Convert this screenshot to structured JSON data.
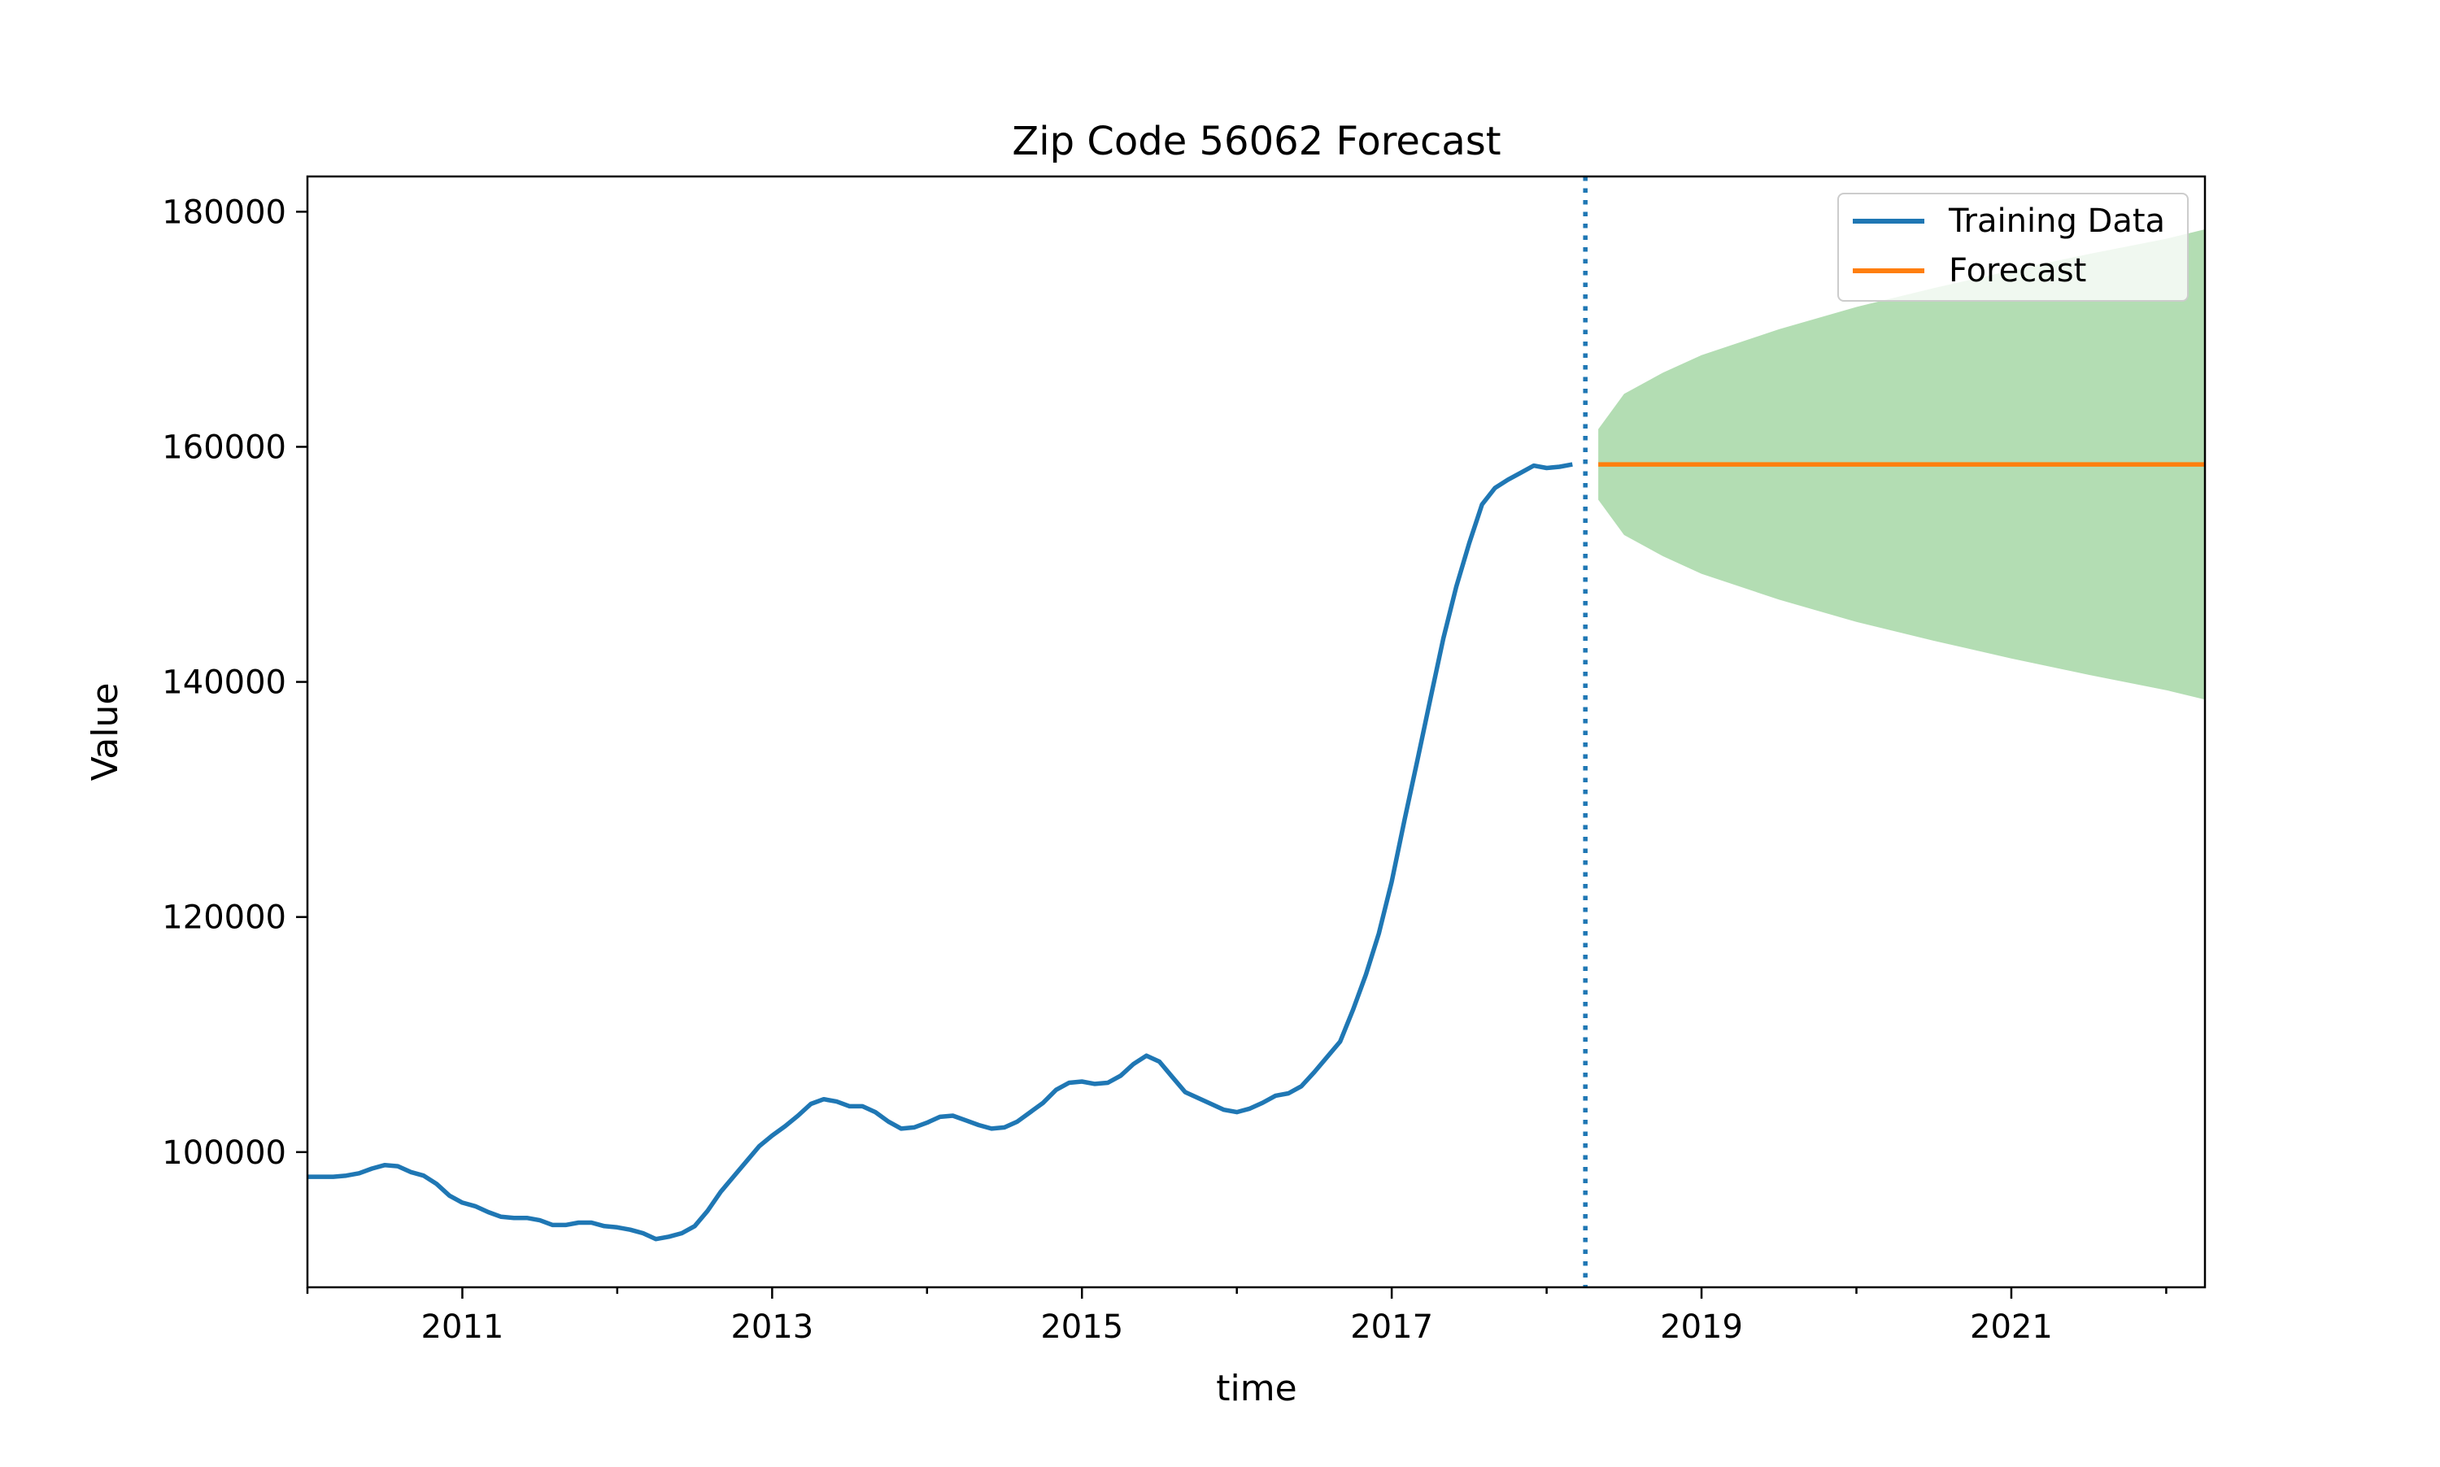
{
  "chart_data": {
    "type": "line",
    "title": "Zip Code 56062 Forecast",
    "xlabel": "time",
    "ylabel": "Value",
    "x_axis_type": "date",
    "xlim": [
      "2010-01",
      "2022-04"
    ],
    "ylim": [
      88500,
      183000
    ],
    "x_ticks": [
      "2011",
      "2013",
      "2015",
      "2017",
      "2019",
      "2021"
    ],
    "y_ticks": [
      100000,
      120000,
      140000,
      160000,
      180000
    ],
    "grid": false,
    "legend_position": "top-right",
    "colors": {
      "training": "#1f77b4",
      "forecast": "#ff7f0e",
      "confidence_band": "#2ca02c",
      "split_line": "#1f77b4"
    },
    "split_date": "2018-04",
    "series": [
      {
        "name": "Training Data",
        "points": [
          [
            "2010-01",
            97900
          ],
          [
            "2010-02",
            97900
          ],
          [
            "2010-03",
            97900
          ],
          [
            "2010-04",
            98000
          ],
          [
            "2010-05",
            98200
          ],
          [
            "2010-06",
            98600
          ],
          [
            "2010-07",
            98900
          ],
          [
            "2010-08",
            98800
          ],
          [
            "2010-09",
            98300
          ],
          [
            "2010-10",
            98000
          ],
          [
            "2010-11",
            97300
          ],
          [
            "2010-12",
            96300
          ],
          [
            "2011-01",
            95700
          ],
          [
            "2011-02",
            95400
          ],
          [
            "2011-03",
            94900
          ],
          [
            "2011-04",
            94500
          ],
          [
            "2011-05",
            94400
          ],
          [
            "2011-06",
            94400
          ],
          [
            "2011-07",
            94200
          ],
          [
            "2011-08",
            93800
          ],
          [
            "2011-09",
            93800
          ],
          [
            "2011-10",
            94000
          ],
          [
            "2011-11",
            94000
          ],
          [
            "2011-12",
            93700
          ],
          [
            "2012-01",
            93600
          ],
          [
            "2012-02",
            93400
          ],
          [
            "2012-03",
            93100
          ],
          [
            "2012-04",
            92600
          ],
          [
            "2012-05",
            92800
          ],
          [
            "2012-06",
            93100
          ],
          [
            "2012-07",
            93700
          ],
          [
            "2012-08",
            95000
          ],
          [
            "2012-09",
            96600
          ],
          [
            "2012-10",
            97900
          ],
          [
            "2012-11",
            99200
          ],
          [
            "2012-12",
            100500
          ],
          [
            "2013-01",
            101400
          ],
          [
            "2013-02",
            102200
          ],
          [
            "2013-03",
            103100
          ],
          [
            "2013-04",
            104100
          ],
          [
            "2013-05",
            104500
          ],
          [
            "2013-06",
            104300
          ],
          [
            "2013-07",
            103900
          ],
          [
            "2013-08",
            103900
          ],
          [
            "2013-09",
            103400
          ],
          [
            "2013-10",
            102600
          ],
          [
            "2013-11",
            102000
          ],
          [
            "2013-12",
            102100
          ],
          [
            "2014-01",
            102500
          ],
          [
            "2014-02",
            103000
          ],
          [
            "2014-03",
            103100
          ],
          [
            "2014-04",
            102700
          ],
          [
            "2014-05",
            102300
          ],
          [
            "2014-06",
            102000
          ],
          [
            "2014-07",
            102100
          ],
          [
            "2014-08",
            102600
          ],
          [
            "2014-09",
            103400
          ],
          [
            "2014-10",
            104200
          ],
          [
            "2014-11",
            105300
          ],
          [
            "2014-12",
            105900
          ],
          [
            "2015-01",
            106000
          ],
          [
            "2015-02",
            105800
          ],
          [
            "2015-03",
            105900
          ],
          [
            "2015-04",
            106500
          ],
          [
            "2015-05",
            107500
          ],
          [
            "2015-06",
            108200
          ],
          [
            "2015-07",
            107700
          ],
          [
            "2015-08",
            106400
          ],
          [
            "2015-09",
            105100
          ],
          [
            "2015-10",
            104600
          ],
          [
            "2015-11",
            104100
          ],
          [
            "2015-12",
            103600
          ],
          [
            "2016-01",
            103400
          ],
          [
            "2016-02",
            103700
          ],
          [
            "2016-03",
            104200
          ],
          [
            "2016-04",
            104800
          ],
          [
            "2016-05",
            105000
          ],
          [
            "2016-06",
            105600
          ],
          [
            "2016-07",
            106800
          ],
          [
            "2016-08",
            108100
          ],
          [
            "2016-09",
            109400
          ],
          [
            "2016-10",
            112100
          ],
          [
            "2016-11",
            115100
          ],
          [
            "2016-12",
            118600
          ],
          [
            "2017-01",
            123000
          ],
          [
            "2017-02",
            128300
          ],
          [
            "2017-03",
            133400
          ],
          [
            "2017-04",
            138600
          ],
          [
            "2017-05",
            143700
          ],
          [
            "2017-06",
            148100
          ],
          [
            "2017-07",
            151800
          ],
          [
            "2017-08",
            155100
          ],
          [
            "2017-09",
            156500
          ],
          [
            "2017-10",
            157200
          ],
          [
            "2017-11",
            157800
          ],
          [
            "2017-12",
            158400
          ],
          [
            "2018-01",
            158200
          ],
          [
            "2018-02",
            158300
          ],
          [
            "2018-03",
            158500
          ]
        ]
      },
      {
        "name": "Forecast",
        "points": [
          [
            "2018-05",
            158500
          ],
          [
            "2022-04",
            158500
          ]
        ]
      }
    ],
    "confidence_band": {
      "x": [
        "2018-05",
        "2018-07",
        "2018-10",
        "2019-01",
        "2019-07",
        "2020-01",
        "2020-07",
        "2021-01",
        "2021-07",
        "2022-01",
        "2022-04"
      ],
      "upper": [
        161500,
        164500,
        166300,
        167800,
        170000,
        171900,
        173500,
        175000,
        176400,
        177700,
        178500
      ],
      "lower": [
        155500,
        152500,
        150700,
        149200,
        147000,
        145100,
        143500,
        142000,
        140600,
        139300,
        138500
      ]
    }
  }
}
